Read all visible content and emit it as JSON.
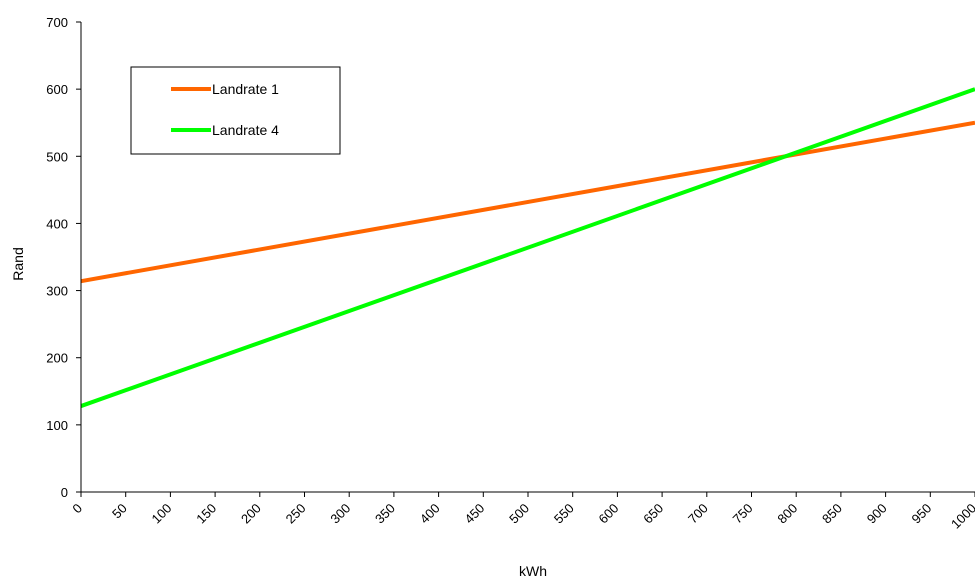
{
  "chart_data": {
    "type": "line",
    "title": "",
    "xlabel": "kWh",
    "ylabel": "Rand",
    "x_ticks": [
      "0",
      "50",
      "100",
      "150",
      "200",
      "250",
      "300",
      "350",
      "400",
      "450",
      "500",
      "550",
      "600",
      "650",
      "700",
      "750",
      "800",
      "850",
      "900",
      "950",
      "1000"
    ],
    "y_ticks": [
      "0",
      "100",
      "200",
      "300",
      "400",
      "500",
      "600",
      "700"
    ],
    "xlim": [
      0,
      1000
    ],
    "ylim": [
      0,
      700
    ],
    "grid": false,
    "legend_position": "top-left",
    "series": [
      {
        "name": "Landrate 1",
        "color": "#ff6600",
        "x": [
          0,
          1000
        ],
        "y": [
          314,
          550
        ]
      },
      {
        "name": "Landrate 4",
        "color": "#00ff00",
        "x": [
          0,
          1000
        ],
        "y": [
          128,
          600
        ]
      }
    ]
  }
}
